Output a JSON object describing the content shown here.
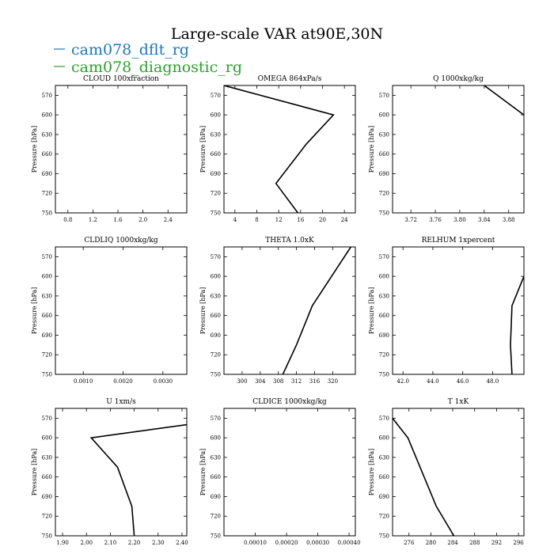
{
  "figure": {
    "title": "Large-scale VAR at90E,30N",
    "legend": [
      {
        "label": "cam078_dflt_rg",
        "color": "#1f77b4"
      },
      {
        "label": "cam078_diagnostic_rg",
        "color": "#2ca02c"
      }
    ]
  },
  "chart_data": [
    {
      "type": "line",
      "title": "CLOUD  100xfraction",
      "ylabel": "Pressure [hPa]",
      "xlim": [
        0.6,
        2.7
      ],
      "ylim": [
        750,
        555
      ],
      "xticks": [
        "0.8",
        "1.2",
        "1.6",
        "2.0",
        "2.4"
      ],
      "xtick_values": [
        0.8,
        1.2,
        1.6,
        2.0,
        2.4
      ],
      "yticks": [
        "570",
        "600",
        "630",
        "660",
        "690",
        "720",
        "750"
      ],
      "ytick_values": [
        570,
        600,
        630,
        660,
        690,
        720,
        750
      ],
      "series": []
    },
    {
      "type": "line",
      "title": "OMEGA  864xPa/s",
      "ylabel": "Pressure [hPa]",
      "xlim": [
        2,
        26
      ],
      "ylim": [
        750,
        555
      ],
      "xticks": [
        "4",
        "8",
        "12",
        "16",
        "20",
        "24"
      ],
      "xtick_values": [
        4,
        8,
        12,
        16,
        20,
        24
      ],
      "yticks": [
        "570",
        "600",
        "630",
        "660",
        "690",
        "720",
        "750"
      ],
      "ytick_values": [
        570,
        600,
        630,
        660,
        690,
        720,
        750
      ],
      "series": [
        {
          "color": "#000000",
          "x": [
            15.5,
            11.5,
            17,
            22,
            2
          ],
          "y": [
            750,
            705,
            645,
            600,
            555
          ]
        }
      ]
    },
    {
      "type": "line",
      "title": "Q  1000xkg/kg",
      "ylabel": "Pressure [hPa]",
      "xlim": [
        3.69,
        3.905
      ],
      "ylim": [
        750,
        555
      ],
      "xticks": [
        "3.72",
        "3.76",
        "3.80",
        "3.84",
        "3.88"
      ],
      "xtick_values": [
        3.72,
        3.76,
        3.8,
        3.84,
        3.88
      ],
      "yticks": [
        "570",
        "600",
        "630",
        "660",
        "690",
        "720",
        "750"
      ],
      "ytick_values": [
        570,
        600,
        630,
        660,
        690,
        720,
        750
      ],
      "series": [
        {
          "color": "#000000",
          "x": [
            3.84,
            3.905
          ],
          "y": [
            555,
            600
          ]
        }
      ]
    },
    {
      "type": "line",
      "title": "CLDLIQ  1000xkg/kg",
      "ylabel": "Pressure [hPa]",
      "xlim": [
        0.0003,
        0.0036
      ],
      "ylim": [
        750,
        555
      ],
      "xticks": [
        "0.0010",
        "0.0020",
        "0.0030"
      ],
      "xtick_values": [
        0.001,
        0.002,
        0.003
      ],
      "yticks": [
        "570",
        "600",
        "630",
        "660",
        "690",
        "720",
        "750"
      ],
      "ytick_values": [
        570,
        600,
        630,
        660,
        690,
        720,
        750
      ],
      "series": []
    },
    {
      "type": "line",
      "title": "THETA  1.0xK",
      "ylabel": "Pressure [hPa]",
      "xlim": [
        296,
        325
      ],
      "ylim": [
        750,
        555
      ],
      "xticks": [
        "300",
        "304",
        "308",
        "312",
        "316",
        "320"
      ],
      "xtick_values": [
        300,
        304,
        308,
        312,
        316,
        320
      ],
      "yticks": [
        "570",
        "600",
        "630",
        "660",
        "690",
        "720",
        "750"
      ],
      "ytick_values": [
        570,
        600,
        630,
        660,
        690,
        720,
        750
      ],
      "series": [
        {
          "color": "#000000",
          "x": [
            309,
            312,
            315.5,
            324
          ],
          "y": [
            750,
            705,
            645,
            555
          ]
        }
      ]
    },
    {
      "type": "line",
      "title": "RELHUM  1xpercent",
      "ylabel": "Pressure [hPa]",
      "xlim": [
        41.3,
        50.1
      ],
      "ylim": [
        750,
        555
      ],
      "xticks": [
        "42.0",
        "44.0",
        "46.0",
        "48.0"
      ],
      "xtick_values": [
        42,
        44,
        46,
        48
      ],
      "yticks": [
        "570",
        "600",
        "630",
        "660",
        "690",
        "720",
        "750"
      ],
      "ytick_values": [
        570,
        600,
        630,
        660,
        690,
        720,
        750
      ],
      "series": [
        {
          "color": "#000000",
          "x": [
            49.3,
            49.2,
            49.3,
            50.1
          ],
          "y": [
            750,
            705,
            645,
            600
          ]
        }
      ]
    },
    {
      "type": "line",
      "title": "U  1xm/s",
      "ylabel": "Pressure [hPa]",
      "xlim": [
        1.87,
        2.42
      ],
      "ylim": [
        750,
        555
      ],
      "xticks": [
        "1.90",
        "2.00",
        "2.10",
        "2.20",
        "2.30",
        "2.40"
      ],
      "xtick_values": [
        1.9,
        2.0,
        2.1,
        2.2,
        2.3,
        2.4
      ],
      "yticks": [
        "570",
        "600",
        "630",
        "660",
        "690",
        "720",
        "750"
      ],
      "ytick_values": [
        570,
        600,
        630,
        660,
        690,
        720,
        750
      ],
      "series": [
        {
          "color": "#000000",
          "x": [
            2.2,
            2.19,
            2.13,
            2.02,
            2.42
          ],
          "y": [
            750,
            705,
            645,
            600,
            580
          ]
        }
      ]
    },
    {
      "type": "line",
      "title": "CLDICE  1000xkg/kg",
      "ylabel": "Pressure [hPa]",
      "xlim": [
        0.0,
        0.00042
      ],
      "ylim": [
        750,
        555
      ],
      "xticks": [
        "0.00010",
        "0.00020",
        "0.00030",
        "0.00040"
      ],
      "xtick_values": [
        0.0001,
        0.0002,
        0.0003,
        0.0004
      ],
      "yticks": [
        "570",
        "600",
        "630",
        "660",
        "690",
        "720",
        "750"
      ],
      "ytick_values": [
        570,
        600,
        630,
        660,
        690,
        720,
        750
      ],
      "series": []
    },
    {
      "type": "line",
      "title": "T  1xK",
      "ylabel": "Pressure [hPa]",
      "xlim": [
        273,
        297
      ],
      "ylim": [
        750,
        555
      ],
      "xticks": [
        "276",
        "280",
        "284",
        "288",
        "292",
        "296"
      ],
      "xtick_values": [
        276,
        280,
        284,
        288,
        292,
        296
      ],
      "yticks": [
        "570",
        "600",
        "630",
        "660",
        "690",
        "720",
        "750"
      ],
      "ytick_values": [
        570,
        600,
        630,
        660,
        690,
        720,
        750
      ],
      "series": [
        {
          "color": "#000000",
          "x": [
            284.2,
            281,
            275.8,
            273
          ],
          "y": [
            750,
            705,
            600,
            570
          ]
        }
      ]
    }
  ]
}
